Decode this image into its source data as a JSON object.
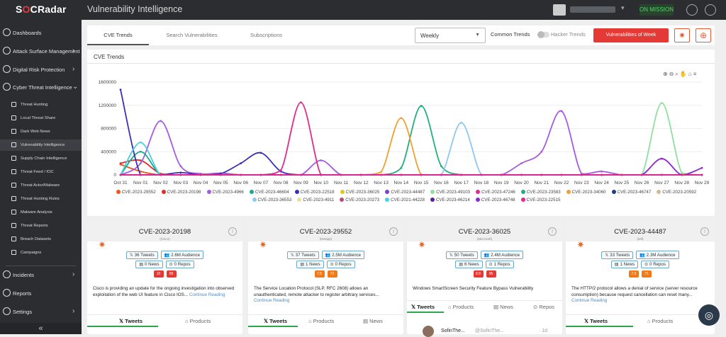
{
  "app": {
    "brand": "SOCRadar",
    "page_title": "Vulnerability Intelligence"
  },
  "topbar": {
    "status_label": "ON MISSION"
  },
  "sidebar": {
    "main_items": [
      {
        "label": "Dashboards",
        "icon": "dashboard-icon"
      },
      {
        "label": "Attack Surface Management",
        "icon": "target-icon"
      },
      {
        "label": "Digital Risk Protection",
        "icon": "shield-icon"
      },
      {
        "label": "Cyber Threat Intelligence",
        "icon": "globe-icon"
      }
    ],
    "sub_items": [
      {
        "label": "Threat Hunting"
      },
      {
        "label": "Local Threat Share"
      },
      {
        "label": "Dark Web News"
      },
      {
        "label": "Vulnerability Intelligence"
      },
      {
        "label": "Supply Chain Intelligence"
      },
      {
        "label": "Threat Feed / IOC"
      },
      {
        "label": "Threat Actor/Malware"
      },
      {
        "label": "Threat Hunting Rules"
      },
      {
        "label": "Malware Analysis"
      },
      {
        "label": "Threat Reports"
      },
      {
        "label": "Breach Datasets"
      },
      {
        "label": "Campaigns"
      }
    ],
    "bottom_items": [
      {
        "label": "Incidents"
      },
      {
        "label": "Reports"
      },
      {
        "label": "Settings"
      }
    ],
    "collapse_label": "«"
  },
  "tabs": [
    "CVE Trends",
    "Search Vulnerabilities",
    "Subscriptions"
  ],
  "controls": {
    "period": "Weekly",
    "common_trends": "Common Trends",
    "hacker_trends": "Hacker Trends",
    "vuln_week": "Vulnerabilities of Week"
  },
  "chart": {
    "title": "CVE Trends"
  },
  "chart_data": {
    "type": "line",
    "x": [
      "Oct 31",
      "Nov 01",
      "Nov 02",
      "Nov 03",
      "Nov 04",
      "Nov 05",
      "Nov 06",
      "Nov 07",
      "Nov 08",
      "Nov 09",
      "Nov 10",
      "Nov 11",
      "Nov 12",
      "Nov 13",
      "Nov 14",
      "Nov 15",
      "Nov 16",
      "Nov 17",
      "Nov 18",
      "Nov 19",
      "Nov 20",
      "Nov 21",
      "Nov 22",
      "Nov 23",
      "Nov 24",
      "Nov 25",
      "Nov 26",
      "Nov 27",
      "Nov 28",
      "Nov 29"
    ],
    "y_ticks": [
      "1600000",
      "1200000",
      "800000",
      "400000",
      "0"
    ],
    "ylim": [
      0,
      1600000
    ],
    "series": [
      {
        "name": "CVE-2023-29552",
        "color": "#e8591a",
        "values": [
          180000,
          60000,
          0,
          0,
          0,
          0,
          0,
          0,
          0,
          0,
          0,
          0,
          0,
          0,
          0,
          0,
          0,
          0,
          0,
          0,
          0,
          0,
          0,
          0,
          0,
          0,
          0,
          0,
          0,
          0
        ]
      },
      {
        "name": "CVE-2023-20198",
        "color": "#e02b2b",
        "values": [
          200000,
          250000,
          20000,
          0,
          0,
          0,
          0,
          0,
          0,
          0,
          0,
          0,
          0,
          0,
          0,
          0,
          0,
          0,
          0,
          0,
          0,
          0,
          0,
          0,
          0,
          0,
          0,
          0,
          0,
          0
        ]
      },
      {
        "name": "CVE-2023-4966",
        "color": "#a35ce0",
        "values": [
          0,
          200000,
          930000,
          150000,
          20000,
          30000,
          0,
          0,
          0,
          0,
          250000,
          0,
          0,
          0,
          0,
          0,
          0,
          0,
          0,
          0,
          200000,
          400000,
          1100000,
          20000,
          60000,
          0,
          0,
          0,
          0,
          0
        ]
      },
      {
        "name": "CVE-2023-46604",
        "color": "#1aa88e",
        "values": [
          0,
          400000,
          0,
          0,
          0,
          0,
          0,
          0,
          0,
          0,
          0,
          0,
          0,
          0,
          0,
          0,
          0,
          0,
          0,
          0,
          0,
          0,
          0,
          0,
          0,
          0,
          0,
          0,
          0,
          0
        ]
      },
      {
        "name": "CVE-2023-22518",
        "color": "#3a2fb8",
        "values": [
          1470000,
          0,
          0,
          40000,
          0,
          20000,
          200000,
          380000,
          60000,
          0,
          0,
          0,
          0,
          0,
          0,
          0,
          0,
          0,
          0,
          0,
          0,
          0,
          0,
          0,
          0,
          0,
          0,
          0,
          0,
          0
        ]
      },
      {
        "name": "CVE-2023-36025",
        "color": "#e0c526",
        "values": [
          0,
          0,
          0,
          0,
          0,
          0,
          0,
          0,
          0,
          0,
          0,
          0,
          0,
          0,
          0,
          0,
          0,
          0,
          0,
          0,
          0,
          0,
          0,
          0,
          0,
          0,
          0,
          0,
          0,
          0
        ]
      },
      {
        "name": "CVE-2023-44487",
        "color": "#7b3fd9",
        "values": [
          0,
          0,
          0,
          0,
          0,
          0,
          0,
          0,
          0,
          0,
          0,
          0,
          0,
          0,
          0,
          0,
          0,
          0,
          0,
          0,
          0,
          0,
          0,
          0,
          0,
          0,
          0,
          0,
          0,
          0
        ]
      },
      {
        "name": "CVE-2023-49103",
        "color": "#8fe0a0",
        "values": [
          0,
          0,
          0,
          0,
          0,
          0,
          0,
          0,
          0,
          0,
          0,
          0,
          0,
          0,
          0,
          0,
          0,
          0,
          0,
          0,
          0,
          0,
          0,
          0,
          0,
          0,
          0,
          1240000,
          30000,
          0
        ]
      },
      {
        "name": "CVE-2023-47246",
        "color": "#e02a8c",
        "values": [
          0,
          0,
          0,
          0,
          0,
          0,
          0,
          0,
          80000,
          1250000,
          0,
          0,
          0,
          0,
          0,
          0,
          0,
          0,
          0,
          0,
          0,
          0,
          0,
          0,
          0,
          0,
          0,
          0,
          0,
          0
        ]
      },
      {
        "name": "CVE-2023-23583",
        "color": "#22b07a",
        "values": [
          0,
          0,
          0,
          0,
          0,
          0,
          0,
          0,
          0,
          0,
          0,
          0,
          0,
          0,
          120000,
          1190000,
          150000,
          0,
          0,
          0,
          0,
          0,
          0,
          0,
          0,
          0,
          0,
          0,
          0,
          0
        ]
      },
      {
        "name": "CVE-2023-34060",
        "color": "#f0a030",
        "values": [
          0,
          0,
          0,
          0,
          0,
          0,
          0,
          0,
          0,
          0,
          0,
          0,
          0,
          50000,
          980000,
          0,
          0,
          0,
          0,
          0,
          0,
          0,
          0,
          0,
          0,
          0,
          0,
          0,
          0,
          0
        ]
      },
      {
        "name": "CVE-2023-46747",
        "color": "#1e3a8a",
        "values": [
          0,
          0,
          0,
          0,
          0,
          0,
          0,
          0,
          0,
          0,
          0,
          0,
          0,
          0,
          0,
          0,
          0,
          0,
          0,
          0,
          0,
          0,
          0,
          0,
          0,
          0,
          0,
          0,
          0,
          0
        ]
      },
      {
        "name": "CVE-2023-20592",
        "color": "#d4b890",
        "values": [
          0,
          0,
          0,
          0,
          0,
          0,
          0,
          0,
          0,
          0,
          0,
          0,
          0,
          0,
          0,
          0,
          0,
          0,
          0,
          0,
          0,
          0,
          0,
          0,
          0,
          0,
          0,
          0,
          0,
          0
        ]
      },
      {
        "name": "CVE-2023-36553",
        "color": "#8ec8f0",
        "values": [
          0,
          0,
          0,
          0,
          0,
          0,
          0,
          0,
          0,
          0,
          0,
          0,
          0,
          0,
          0,
          0,
          0,
          900000,
          0,
          0,
          0,
          0,
          0,
          0,
          0,
          0,
          0,
          0,
          0,
          0
        ]
      },
      {
        "name": "CVE-2023-4911",
        "color": "#e8e0a0",
        "values": [
          0,
          0,
          0,
          0,
          0,
          0,
          0,
          0,
          0,
          0,
          0,
          0,
          0,
          0,
          0,
          0,
          0,
          0,
          0,
          0,
          0,
          0,
          0,
          0,
          0,
          0,
          0,
          0,
          0,
          0
        ]
      },
      {
        "name": "CVE-2023-20273",
        "color": "#b84a7a",
        "values": [
          0,
          0,
          0,
          0,
          0,
          0,
          0,
          0,
          0,
          0,
          0,
          0,
          0,
          0,
          0,
          0,
          0,
          0,
          0,
          0,
          0,
          0,
          0,
          0,
          0,
          0,
          0,
          0,
          0,
          0
        ]
      },
      {
        "name": "CVE-2021-44228",
        "color": "#4ad0e0",
        "values": [
          0,
          560000,
          0,
          0,
          0,
          0,
          0,
          0,
          0,
          0,
          0,
          0,
          0,
          0,
          0,
          0,
          0,
          0,
          0,
          0,
          0,
          0,
          0,
          0,
          0,
          0,
          0,
          0,
          0,
          0
        ]
      },
      {
        "name": "CVE-2023-46214",
        "color": "#5a1ea0",
        "values": [
          0,
          0,
          0,
          0,
          0,
          0,
          0,
          0,
          0,
          0,
          0,
          0,
          0,
          0,
          0,
          0,
          0,
          0,
          0,
          0,
          0,
          0,
          0,
          0,
          0,
          0,
          0,
          0,
          0,
          0
        ]
      },
      {
        "name": "CVE-2023-46748",
        "color": "#8a2ad0",
        "values": [
          0,
          0,
          0,
          0,
          0,
          0,
          0,
          0,
          0,
          0,
          0,
          0,
          0,
          0,
          0,
          0,
          0,
          0,
          0,
          0,
          0,
          0,
          0,
          0,
          0,
          0,
          0,
          280000,
          0,
          120000
        ]
      },
      {
        "name": "CVE-2023-22515",
        "color": "#e8258a",
        "values": [
          0,
          0,
          0,
          0,
          0,
          0,
          0,
          0,
          0,
          0,
          0,
          0,
          0,
          0,
          0,
          0,
          0,
          0,
          0,
          0,
          0,
          0,
          0,
          0,
          0,
          0,
          0,
          0,
          0,
          0
        ]
      }
    ]
  },
  "cves": [
    {
      "id": "CVE-2023-20198",
      "vendor": "(Cisco)",
      "tweets": "36 Tweets",
      "audience": "2.6M Audience",
      "news": "0 News",
      "repos": "0 Repos",
      "score1": "10",
      "score2": "99",
      "score_color": "#e53935",
      "desc": "Cisco is providing an update for the ongoing investigation into observed exploitation of the web UI feature in Cisco IOS...",
      "more": "Continue Reading",
      "tabs": [
        "Tweets",
        "Products"
      ]
    },
    {
      "id": "CVE-2023-29552",
      "vendor": "(Netapp)",
      "tweets": "37 Tweets",
      "audience": "2.5M Audience",
      "news": "1 News",
      "repos": "0 Repos",
      "score1": "7.5",
      "score2": "71",
      "score_color": "#f07a1a",
      "desc": "The Service Location Protocol (SLP, RFC 2608) allows an unauthenticated, remote attacker to register arbitrary services...",
      "more": "Continue Reading",
      "tabs": [
        "Tweets",
        "Products",
        "News"
      ]
    },
    {
      "id": "CVE-2023-36025",
      "vendor": "(Microsoft)",
      "tweets": "50 Tweets",
      "audience": "2.4M Audience",
      "news": "6 News",
      "repos": "1 Repos",
      "score1": "8.8",
      "score2": "95",
      "score_color": "#e53935",
      "desc": "Windows SmartScreen Security Feature Bypass Vulnerability",
      "more": "",
      "tabs": [
        "Tweets",
        "Products",
        "News",
        "Repos"
      ],
      "tweet": {
        "name": "SofinThe...",
        "handle": "@SofinThe...",
        "time": "· 1d"
      }
    },
    {
      "id": "CVE-2023-44487",
      "vendor": "(ietf)",
      "tweets": "33 Tweets",
      "audience": "2.3M Audience",
      "news": "1 News",
      "repos": "0 Repos",
      "score1": "7.5",
      "score2": "71",
      "score_color": "#f07a1a",
      "desc": "The HTTP/2 protocol allows a denial of service (server resource consumption) because request cancellation can reset many...",
      "more": "Continue Reading",
      "tabs": [
        "Tweets",
        "Products"
      ]
    }
  ]
}
